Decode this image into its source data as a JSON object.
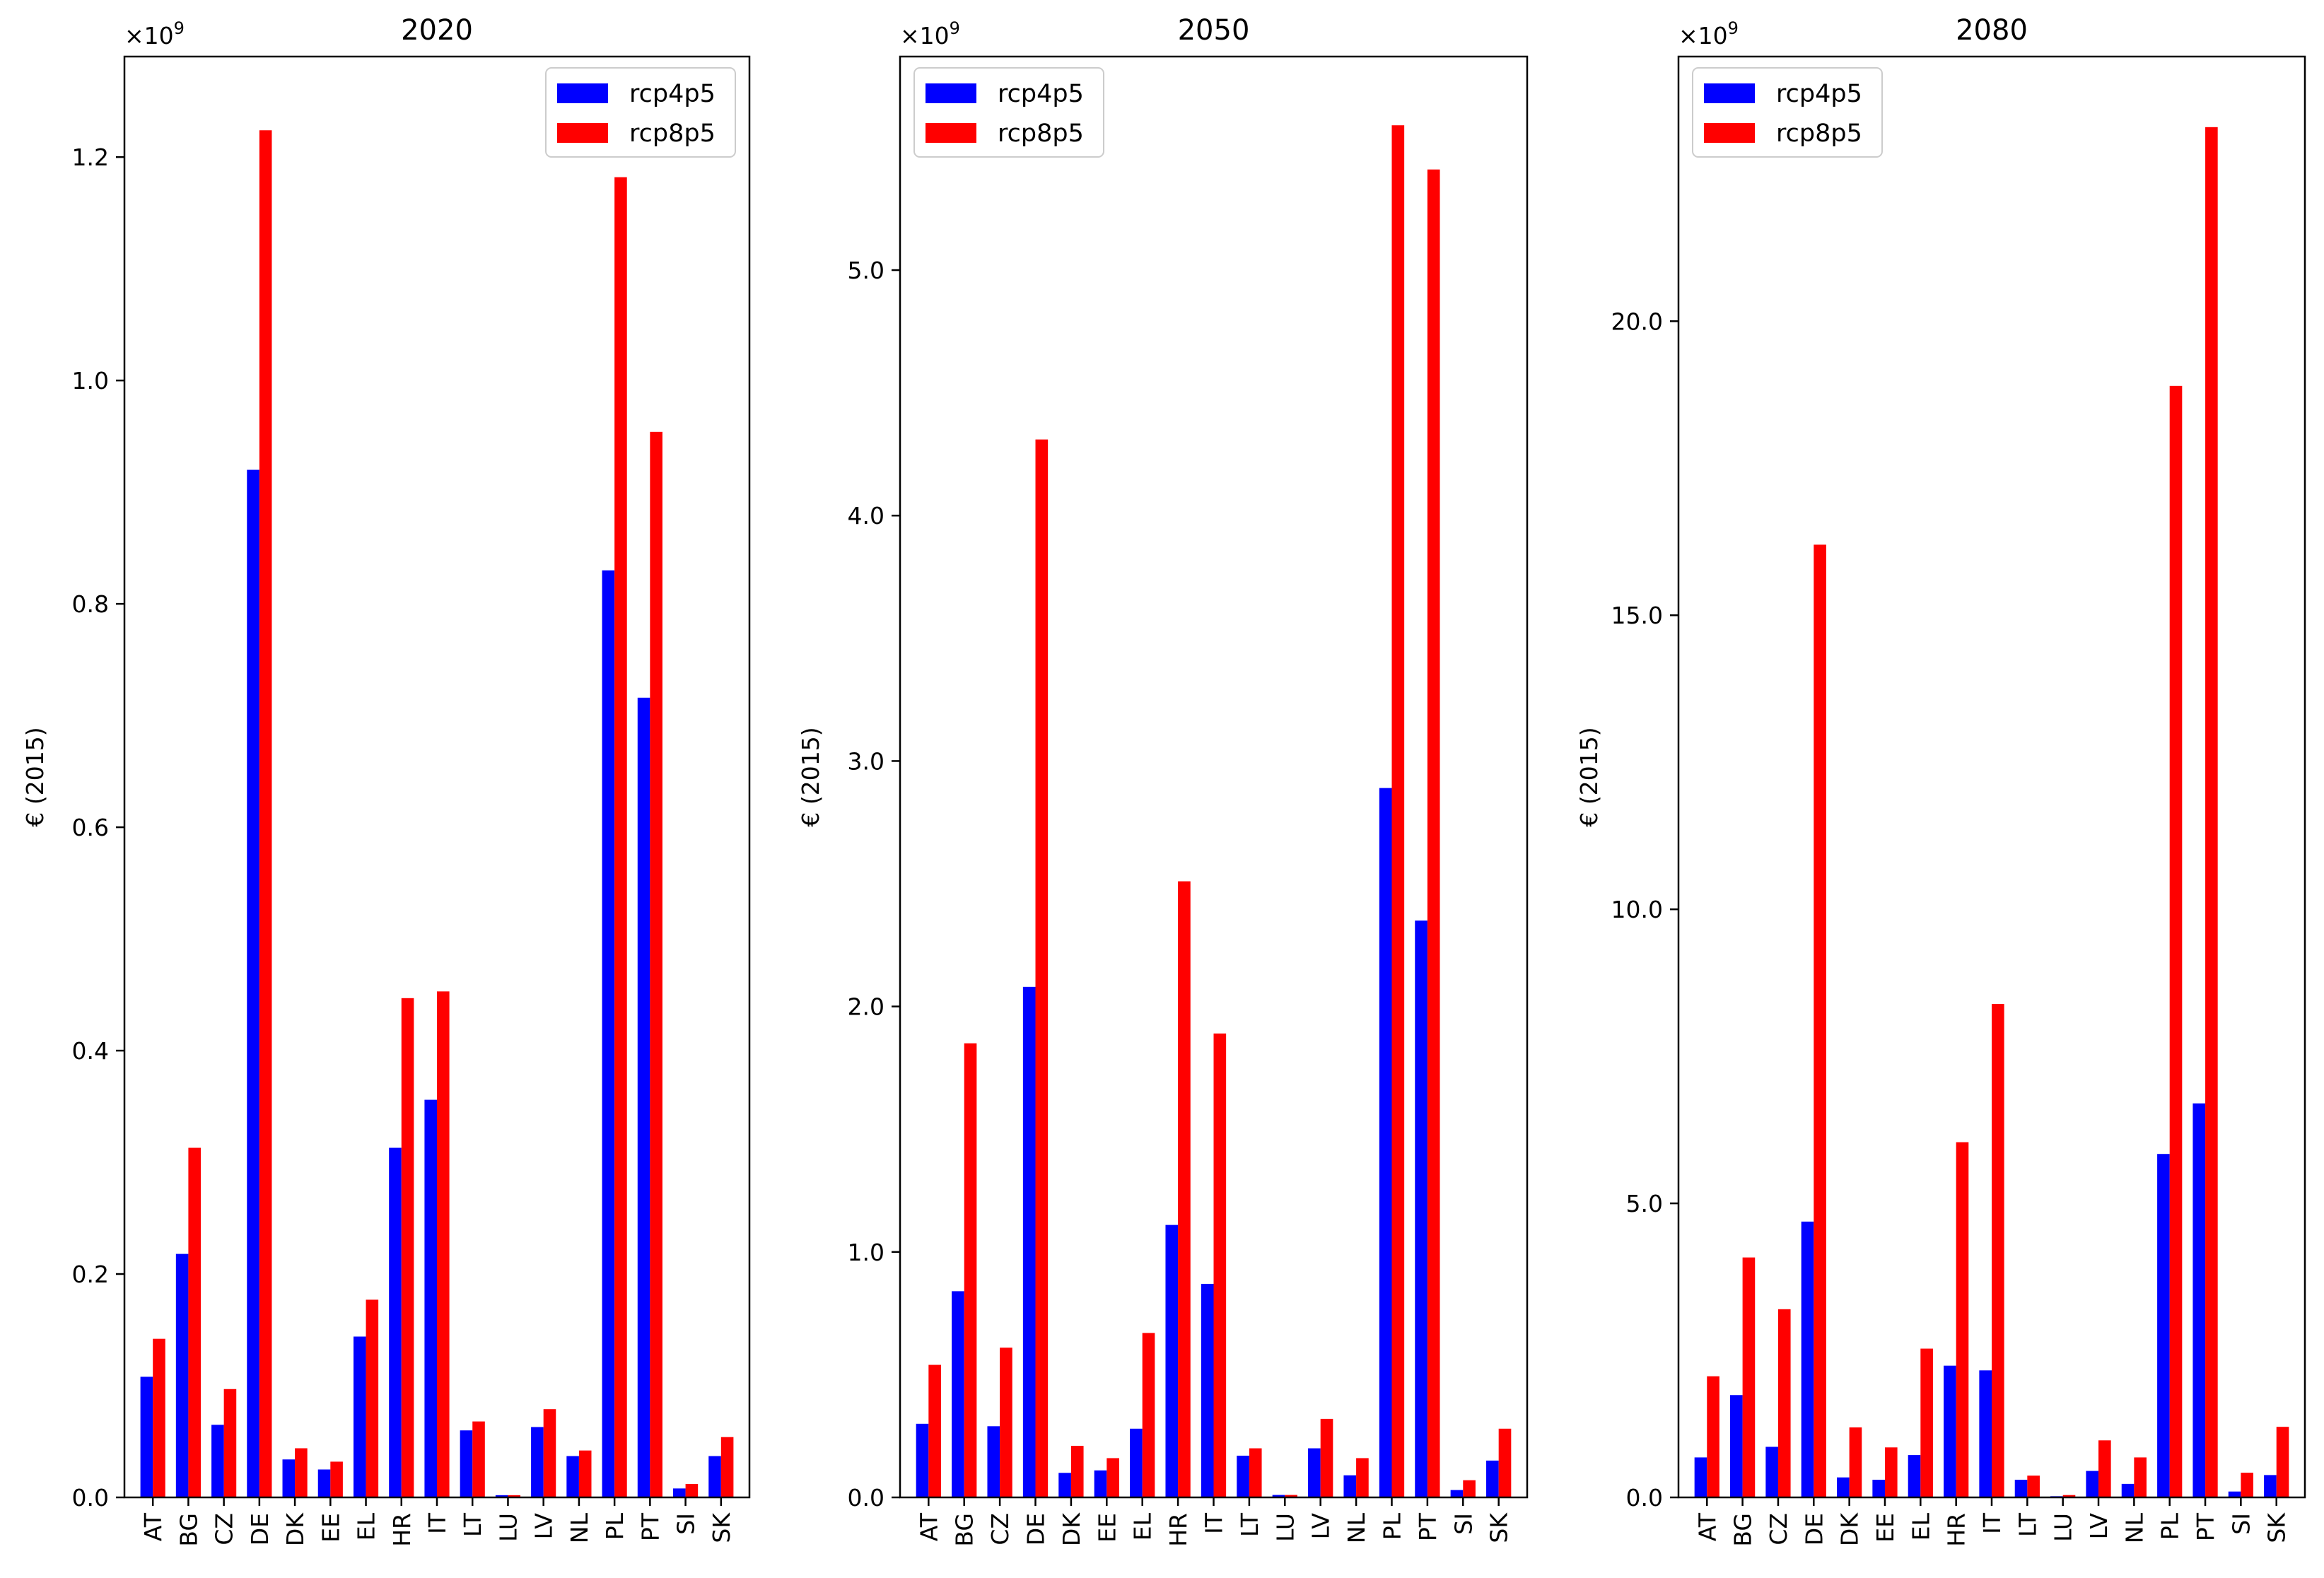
{
  "chart_data": [
    {
      "type": "bar",
      "title": "2020",
      "xlabel": "",
      "ylabel": "€ (2015)",
      "y_multiplier": "×10",
      "y_multiplier_exp": "9",
      "y_ticks": [
        "0.0",
        "0.2",
        "0.4",
        "0.6",
        "0.8",
        "1.0",
        "1.2"
      ],
      "y_tick_values": [
        0.0,
        0.2,
        0.4,
        0.6,
        0.8,
        1.0,
        1.2
      ],
      "ylim": [
        0,
        1.29
      ],
      "categories": [
        "AT",
        "BG",
        "CZ",
        "DE",
        "DK",
        "EE",
        "EL",
        "HR",
        "IT",
        "LT",
        "LU",
        "LV",
        "NL",
        "PL",
        "PT",
        "SI",
        "SK"
      ],
      "series": [
        {
          "name": "rcp4p5",
          "color": "#0000ff",
          "values": [
            0.108,
            0.218,
            0.065,
            0.92,
            0.034,
            0.025,
            0.144,
            0.313,
            0.356,
            0.06,
            0.002,
            0.063,
            0.037,
            0.83,
            0.716,
            0.008,
            0.037
          ]
        },
        {
          "name": "rcp8p5",
          "color": "#ff0000",
          "values": [
            0.142,
            0.313,
            0.097,
            1.224,
            0.044,
            0.032,
            0.177,
            0.447,
            0.453,
            0.068,
            0.002,
            0.079,
            0.042,
            1.182,
            0.954,
            0.012,
            0.054
          ]
        }
      ],
      "legend_loc": "top-right"
    },
    {
      "type": "bar",
      "title": "2050",
      "xlabel": "",
      "ylabel": "€ (2015)",
      "y_multiplier": "×10",
      "y_multiplier_exp": "9",
      "y_ticks": [
        "0.0",
        "1.0",
        "2.0",
        "3.0",
        "4.0",
        "5.0"
      ],
      "y_tick_values": [
        0.0,
        1.0,
        2.0,
        3.0,
        4.0,
        5.0
      ],
      "ylim": [
        0,
        5.87
      ],
      "categories": [
        "AT",
        "BG",
        "CZ",
        "DE",
        "DK",
        "EE",
        "EL",
        "HR",
        "IT",
        "LT",
        "LU",
        "LV",
        "NL",
        "PL",
        "PT",
        "SI",
        "SK"
      ],
      "series": [
        {
          "name": "rcp4p5",
          "color": "#0000ff",
          "values": [
            0.3,
            0.84,
            0.29,
            2.08,
            0.1,
            0.11,
            0.28,
            1.11,
            0.87,
            0.17,
            0.01,
            0.2,
            0.09,
            2.89,
            2.35,
            0.03,
            0.15
          ]
        },
        {
          "name": "rcp8p5",
          "color": "#ff0000",
          "values": [
            0.54,
            1.85,
            0.61,
            4.31,
            0.21,
            0.16,
            0.67,
            2.51,
            1.89,
            0.2,
            0.01,
            0.32,
            0.16,
            5.59,
            5.41,
            0.07,
            0.28
          ]
        }
      ],
      "legend_loc": "top-left"
    },
    {
      "type": "bar",
      "title": "2080",
      "xlabel": "",
      "ylabel": "€ (2015)",
      "y_multiplier": "×10",
      "y_multiplier_exp": "9",
      "y_ticks": [
        "0.0",
        "5.0",
        "10.0",
        "15.0",
        "20.0"
      ],
      "y_tick_values": [
        0.0,
        5.0,
        10.0,
        15.0,
        20.0
      ],
      "ylim": [
        0,
        24.5
      ],
      "categories": [
        "AT",
        "BG",
        "CZ",
        "DE",
        "DK",
        "EE",
        "EL",
        "HR",
        "IT",
        "LT",
        "LU",
        "LV",
        "NL",
        "PL",
        "PT",
        "SI",
        "SK"
      ],
      "series": [
        {
          "name": "rcp4p5",
          "color": "#0000ff",
          "values": [
            0.68,
            1.74,
            0.86,
            4.69,
            0.34,
            0.3,
            0.72,
            2.24,
            2.16,
            0.3,
            0.02,
            0.45,
            0.23,
            5.84,
            6.7,
            0.1,
            0.38
          ]
        },
        {
          "name": "rcp8p5",
          "color": "#ff0000",
          "values": [
            2.06,
            4.08,
            3.2,
            16.2,
            1.19,
            0.85,
            2.53,
            6.04,
            8.39,
            0.37,
            0.04,
            0.97,
            0.68,
            18.9,
            23.3,
            0.42,
            1.2
          ]
        }
      ],
      "legend_loc": "top-left"
    }
  ]
}
